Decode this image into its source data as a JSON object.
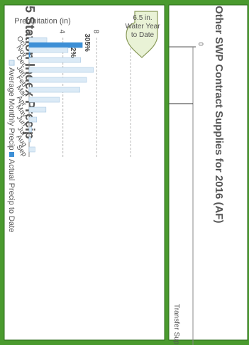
{
  "colors": {
    "frame": "#4a9a2e",
    "panel_bg": "#ffffff",
    "actual": "#3d8fd6",
    "average_fill": "#dbeaf6",
    "average_stroke": "#a9c8e3",
    "callout_fill": "#e9f2d6",
    "callout_stroke": "#8a9a5a",
    "title_text": "#555555"
  },
  "chart_data": {
    "type": "bar",
    "title": "5 Station Index Precip",
    "ylabel": "Precipitation (in)",
    "ylim": [
      0,
      12
    ],
    "yticks": [
      "0",
      "4",
      "8",
      "12"
    ],
    "grid": true,
    "categories": [
      "Oct",
      "Nov",
      "Dec",
      "Jan",
      "Feb",
      "Mar",
      "Apr",
      "May",
      "Jun",
      "Jul",
      "Aug",
      "Sep"
    ],
    "series": [
      {
        "name": "Average Monthly Precip",
        "values": [
          2.1,
          4.6,
          6.1,
          7.6,
          6.8,
          6.0,
          3.6,
          2.0,
          0.9,
          0.3,
          0.2,
          0.7
        ]
      },
      {
        "name": "Actual Precip to Date",
        "values": [
          6.3,
          0.1,
          null,
          null,
          null,
          null,
          null,
          null,
          null,
          null,
          null,
          null
        ]
      }
    ],
    "legend_position": "bottom",
    "annotations": [
      {
        "category": "Oct",
        "text": "305%"
      },
      {
        "category": "Nov",
        "text": "2%"
      }
    ],
    "callout": {
      "value": "6.5 in.",
      "line1": "Water Year",
      "line2": "to Date"
    }
  },
  "secondary": {
    "title": "Other SWP Contract Supplies for 2016 (AF)",
    "tick_zero": "0",
    "row_label": "Transfer Supplies"
  }
}
